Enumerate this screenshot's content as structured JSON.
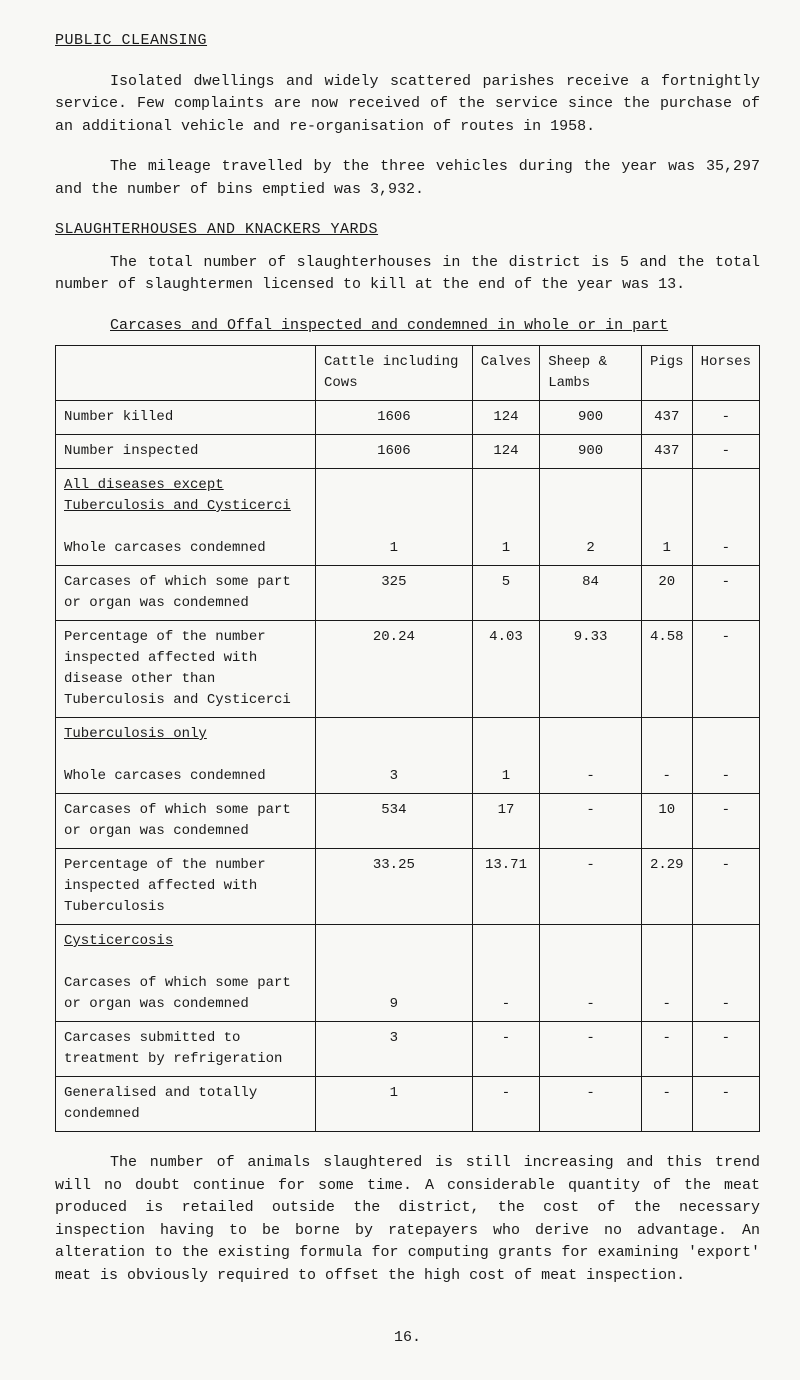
{
  "heading": "PUBLIC CLEANSING",
  "p1": "Isolated dwellings and widely scattered parishes receive a fortnightly service.  Few complaints are now received of the service since the purchase of an additional vehicle and re-organisation of routes in 1958.",
  "p2": "The mileage travelled by the three vehicles during the year was 35,297 and the number of bins emptied was 3,932.",
  "sub1": "SLAUGHTERHOUSES AND KNACKERS YARDS",
  "p3": "The total number of slaughterhouses in the district is 5 and the total number of slaughtermen licensed to kill at the end of the year was 13.",
  "table_title": "Carcases and Offal inspected and condemned in whole or in part",
  "cols": {
    "c0": "",
    "c1": "Cattle including Cows",
    "c2": "Calves",
    "c3": "Sheep & Lambs",
    "c4": "Pigs",
    "c5": "Horses"
  },
  "rows": {
    "r0": {
      "label": "Number killed",
      "c1": "1606",
      "c2": "124",
      "c3": "900",
      "c4": "437",
      "c5": "-"
    },
    "r1": {
      "label": "Number inspected",
      "c1": "1606",
      "c2": "124",
      "c3": "900",
      "c4": "437",
      "c5": "-"
    },
    "r2": {
      "label_u": "All diseases except Tuberculosis and Cysticerci",
      "label2": "Whole carcases condemned",
      "c1": "1",
      "c2": "1",
      "c3": "2",
      "c4": "1",
      "c5": "-"
    },
    "r3": {
      "label": "Carcases of which some part or organ was condemned",
      "c1": "325",
      "c2": "5",
      "c3": "84",
      "c4": "20",
      "c5": "-"
    },
    "r4": {
      "label": "Percentage of the number inspected affected with disease other than Tuberculosis and Cysticerci",
      "c1": "20.24",
      "c2": "4.03",
      "c3": "9.33",
      "c4": "4.58",
      "c5": "-"
    },
    "r5": {
      "label_u": "Tuberculosis only",
      "label2": "Whole carcases condemned",
      "c1": "3",
      "c2": "1",
      "c3": "-",
      "c4": "-",
      "c5": "-"
    },
    "r6": {
      "label": "Carcases of which some part or organ was condemned",
      "c1": "534",
      "c2": "17",
      "c3": "-",
      "c4": "10",
      "c5": "-"
    },
    "r7": {
      "label": "Percentage of the number inspected affected with Tuberculosis",
      "c1": "33.25",
      "c2": "13.71",
      "c3": "-",
      "c4": "2.29",
      "c5": "-"
    },
    "r8": {
      "label_u": "Cysticercosis",
      "label2": "Carcases of which some part or organ was condemned",
      "c1": "9",
      "c2": "-",
      "c3": "-",
      "c4": "-",
      "c5": "-"
    },
    "r9": {
      "label": "Carcases submitted to treatment by refrigeration",
      "c1": "3",
      "c2": "-",
      "c3": "-",
      "c4": "-",
      "c5": "-"
    },
    "r10": {
      "label": "Generalised and totally condemned",
      "c1": "1",
      "c2": "-",
      "c3": "-",
      "c4": "-",
      "c5": "-"
    }
  },
  "p4": "The number of animals slaughtered is still increasing and this trend will no doubt continue for some time.  A considerable quantity of the meat produced is retailed outside the district, the cost of the necessary inspection having to be borne by ratepayers who derive no advantage. An alteration to the existing formula for computing grants for examining 'export' meat is obviously required to offset the high cost of meat inspection.",
  "page_num": "16."
}
